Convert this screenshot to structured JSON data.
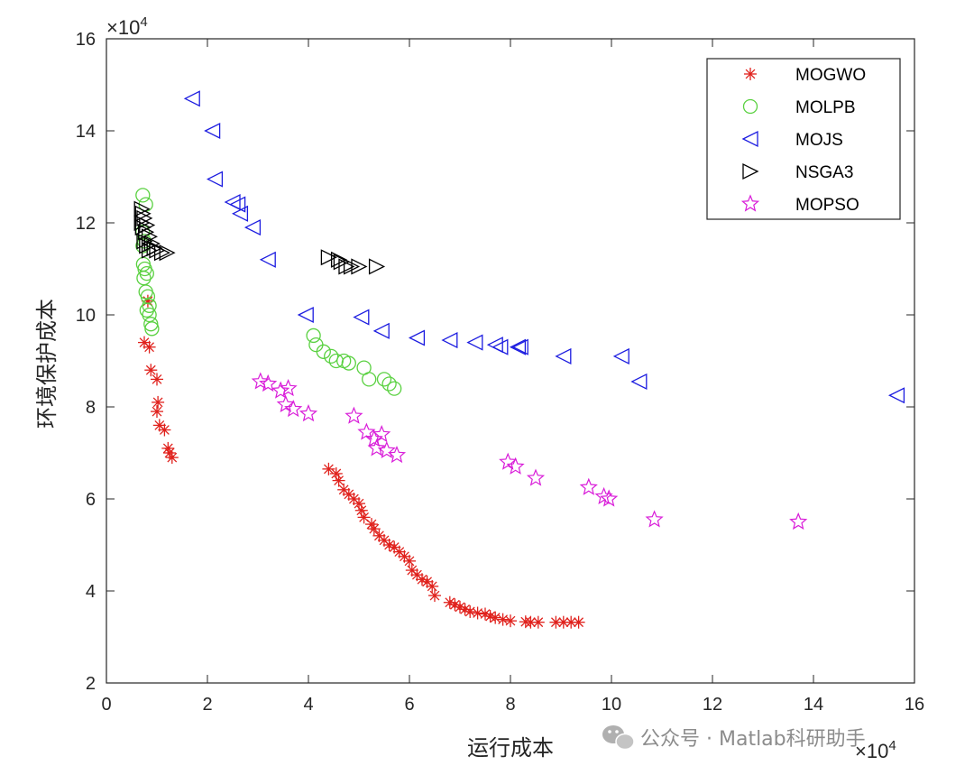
{
  "chart_data": {
    "type": "scatter",
    "title": "",
    "xlabel": "运行成本",
    "ylabel": "环境保护成本",
    "x_exponent": "×10^4",
    "y_exponent": "×10^4",
    "x_exponent_base": "×10",
    "x_exponent_power": "4",
    "y_exponent_base": "×10",
    "y_exponent_power": "4",
    "xlim": [
      0,
      16
    ],
    "ylim": [
      2,
      16
    ],
    "xticks": [
      "0",
      "2",
      "4",
      "6",
      "8",
      "10",
      "12",
      "14",
      "16"
    ],
    "yticks": [
      "2",
      "4",
      "6",
      "8",
      "10",
      "12",
      "14",
      "16"
    ],
    "grid": false,
    "legend_position": "top-right",
    "series": [
      {
        "name": "MOGWO",
        "marker": "asterisk",
        "color": "#e0211c",
        "points": [
          [
            0.82,
            10.3
          ],
          [
            0.75,
            9.4
          ],
          [
            0.85,
            9.3
          ],
          [
            0.88,
            8.8
          ],
          [
            1.0,
            8.6
          ],
          [
            1.02,
            8.1
          ],
          [
            1.0,
            7.9
          ],
          [
            1.05,
            7.6
          ],
          [
            1.15,
            7.5
          ],
          [
            1.22,
            7.1
          ],
          [
            1.3,
            6.9
          ],
          [
            1.25,
            7.0
          ],
          [
            4.4,
            6.65
          ],
          [
            4.55,
            6.55
          ],
          [
            4.6,
            6.4
          ],
          [
            4.7,
            6.2
          ],
          [
            4.8,
            6.1
          ],
          [
            4.9,
            6.0
          ],
          [
            5.0,
            5.9
          ],
          [
            5.05,
            5.75
          ],
          [
            5.1,
            5.6
          ],
          [
            5.25,
            5.45
          ],
          [
            5.3,
            5.35
          ],
          [
            5.4,
            5.2
          ],
          [
            5.5,
            5.1
          ],
          [
            5.6,
            5.0
          ],
          [
            5.7,
            4.95
          ],
          [
            5.8,
            4.85
          ],
          [
            5.9,
            4.75
          ],
          [
            6.0,
            4.65
          ],
          [
            6.05,
            4.45
          ],
          [
            6.15,
            4.35
          ],
          [
            6.25,
            4.25
          ],
          [
            6.35,
            4.2
          ],
          [
            6.45,
            4.1
          ],
          [
            6.5,
            3.9
          ],
          [
            6.8,
            3.75
          ],
          [
            6.9,
            3.7
          ],
          [
            7.0,
            3.65
          ],
          [
            7.1,
            3.6
          ],
          [
            7.2,
            3.55
          ],
          [
            7.35,
            3.52
          ],
          [
            7.5,
            3.5
          ],
          [
            7.6,
            3.45
          ],
          [
            7.7,
            3.42
          ],
          [
            7.85,
            3.38
          ],
          [
            8.0,
            3.35
          ],
          [
            8.3,
            3.33
          ],
          [
            8.4,
            3.32
          ],
          [
            8.55,
            3.32
          ],
          [
            8.9,
            3.32
          ],
          [
            9.05,
            3.32
          ],
          [
            9.2,
            3.32
          ],
          [
            9.35,
            3.32
          ]
        ]
      },
      {
        "name": "MOLPB",
        "marker": "circle",
        "color": "#5ad141",
        "points": [
          [
            0.72,
            12.6
          ],
          [
            0.78,
            12.4
          ],
          [
            0.72,
            11.8
          ],
          [
            0.75,
            11.6
          ],
          [
            0.72,
            11.5
          ],
          [
            0.73,
            11.1
          ],
          [
            0.76,
            11.0
          ],
          [
            0.8,
            10.9
          ],
          [
            0.74,
            10.8
          ],
          [
            0.78,
            10.5
          ],
          [
            0.82,
            10.4
          ],
          [
            0.85,
            10.2
          ],
          [
            0.8,
            10.1
          ],
          [
            0.85,
            10.0
          ],
          [
            0.88,
            9.8
          ],
          [
            0.9,
            9.7
          ],
          [
            4.1,
            9.55
          ],
          [
            4.15,
            9.35
          ],
          [
            4.3,
            9.2
          ],
          [
            4.45,
            9.1
          ],
          [
            4.55,
            9.0
          ],
          [
            4.7,
            9.0
          ],
          [
            4.8,
            8.95
          ],
          [
            5.1,
            8.85
          ],
          [
            5.2,
            8.6
          ],
          [
            5.5,
            8.6
          ],
          [
            5.6,
            8.5
          ],
          [
            5.7,
            8.4
          ]
        ]
      },
      {
        "name": "MOJS",
        "marker": "triangle-left",
        "color": "#1c1ce0",
        "points": [
          [
            1.7,
            14.7
          ],
          [
            2.1,
            14.0
          ],
          [
            2.15,
            12.95
          ],
          [
            2.5,
            12.45
          ],
          [
            2.6,
            12.4
          ],
          [
            2.65,
            12.2
          ],
          [
            2.9,
            11.9
          ],
          [
            3.2,
            11.2
          ],
          [
            3.95,
            10.0
          ],
          [
            5.05,
            9.95
          ],
          [
            5.45,
            9.65
          ],
          [
            6.15,
            9.5
          ],
          [
            6.8,
            9.45
          ],
          [
            7.3,
            9.4
          ],
          [
            7.7,
            9.35
          ],
          [
            7.8,
            9.3
          ],
          [
            8.15,
            9.3
          ],
          [
            8.2,
            9.3
          ],
          [
            9.05,
            9.1
          ],
          [
            10.2,
            9.1
          ],
          [
            10.55,
            8.55
          ],
          [
            15.65,
            8.25
          ]
        ]
      },
      {
        "name": "NSGA3",
        "marker": "triangle-right",
        "color": "#000000",
        "points": [
          [
            0.7,
            12.3
          ],
          [
            0.72,
            12.2
          ],
          [
            0.75,
            12.1
          ],
          [
            0.7,
            12.0
          ],
          [
            0.8,
            11.95
          ],
          [
            0.72,
            11.9
          ],
          [
            0.78,
            11.8
          ],
          [
            0.85,
            11.7
          ],
          [
            0.75,
            11.6
          ],
          [
            0.9,
            11.55
          ],
          [
            0.8,
            11.5
          ],
          [
            0.95,
            11.45
          ],
          [
            1.0,
            11.4
          ],
          [
            0.85,
            11.4
          ],
          [
            1.1,
            11.35
          ],
          [
            1.2,
            11.35
          ],
          [
            4.4,
            11.25
          ],
          [
            4.6,
            11.2
          ],
          [
            4.65,
            11.15
          ],
          [
            4.75,
            11.05
          ],
          [
            4.85,
            11.05
          ],
          [
            5.0,
            11.05
          ],
          [
            5.35,
            11.05
          ]
        ]
      },
      {
        "name": "MOPSO",
        "marker": "star",
        "color": "#d91cd9",
        "points": [
          [
            3.05,
            8.55
          ],
          [
            3.2,
            8.5
          ],
          [
            3.45,
            8.35
          ],
          [
            3.6,
            8.4
          ],
          [
            3.55,
            8.05
          ],
          [
            3.7,
            7.95
          ],
          [
            4.0,
            7.85
          ],
          [
            4.9,
            7.8
          ],
          [
            5.15,
            7.45
          ],
          [
            5.3,
            7.3
          ],
          [
            5.35,
            7.1
          ],
          [
            5.45,
            7.4
          ],
          [
            5.55,
            7.05
          ],
          [
            5.75,
            6.95
          ],
          [
            7.95,
            6.8
          ],
          [
            8.1,
            6.7
          ],
          [
            8.5,
            6.45
          ],
          [
            9.55,
            6.25
          ],
          [
            9.85,
            6.05
          ],
          [
            9.95,
            6.0
          ],
          [
            10.85,
            5.55
          ],
          [
            13.7,
            5.5
          ]
        ]
      }
    ]
  },
  "watermark": {
    "text": "公众号 · Matlab科研助手",
    "icon": "wechat-icon"
  }
}
